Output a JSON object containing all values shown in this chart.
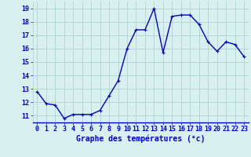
{
  "x": [
    0,
    1,
    2,
    3,
    4,
    5,
    6,
    7,
    8,
    9,
    10,
    11,
    12,
    13,
    14,
    15,
    16,
    17,
    18,
    19,
    20,
    21,
    22,
    23
  ],
  "y": [
    12.8,
    11.9,
    11.8,
    10.8,
    11.1,
    11.1,
    11.1,
    11.4,
    12.5,
    13.6,
    16.0,
    17.4,
    17.4,
    19.0,
    15.7,
    18.4,
    18.5,
    18.5,
    17.8,
    16.5,
    15.8,
    16.5,
    16.3,
    15.4
  ],
  "line_color": "#0000cc",
  "marker": "+",
  "marker_size": 3,
  "bg_color": "#d8f0f0",
  "grid_color": "#aacccc",
  "xlabel": "Graphe des températures (°c)",
  "xlabel_color": "#0000cc",
  "xlabel_fontsize": 7,
  "tick_color": "#0000cc",
  "tick_fontsize": 6,
  "ytick_min": 11,
  "ytick_max": 19,
  "xtick_labels": [
    "0",
    "1",
    "2",
    "3",
    "4",
    "5",
    "6",
    "7",
    "8",
    "9",
    "10",
    "11",
    "12",
    "13",
    "14",
    "15",
    "16",
    "17",
    "18",
    "19",
    "20",
    "21",
    "22",
    "23"
  ],
  "line_width": 1.0
}
